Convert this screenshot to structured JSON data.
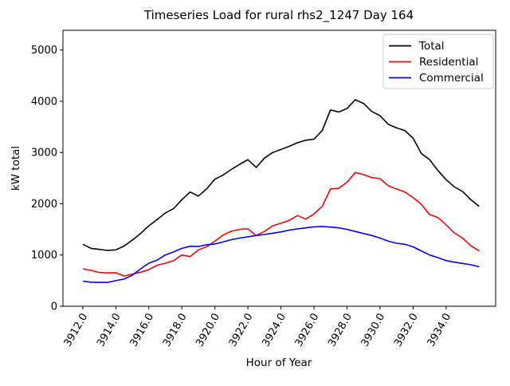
{
  "chart_data": {
    "type": "line",
    "title": "Timeseries Load for rural rhs2_1247  Day 164",
    "xlabel": "Hour of Year",
    "ylabel": "kW total",
    "grid": false,
    "legend_position": "upper-right",
    "xlim": [
      3910.8,
      3937.0
    ],
    "ylim": [
      0,
      5385
    ],
    "xticks": {
      "values": [
        3912,
        3914,
        3916,
        3918,
        3920,
        3922,
        3924,
        3926,
        3928,
        3930,
        3932,
        3934
      ],
      "labels": [
        "3912.0",
        "3914.0",
        "3916.0",
        "3918.0",
        "3920.0",
        "3922.0",
        "3924.0",
        "3926.0",
        "3928.0",
        "3930.0",
        "3932.0",
        "3934.0"
      ],
      "rotation_deg": 60
    },
    "yticks": {
      "values": [
        0,
        1000,
        2000,
        3000,
        4000,
        5000
      ],
      "labels": [
        "0",
        "1000",
        "2000",
        "3000",
        "4000",
        "5000"
      ]
    },
    "x": [
      3912.0,
      3912.5,
      3913.0,
      3913.5,
      3914.0,
      3914.5,
      3915.0,
      3915.5,
      3916.0,
      3916.5,
      3917.0,
      3917.5,
      3918.0,
      3918.5,
      3919.0,
      3919.5,
      3920.0,
      3920.5,
      3921.0,
      3921.5,
      3922.0,
      3922.5,
      3923.0,
      3923.5,
      3924.0,
      3924.5,
      3925.0,
      3925.5,
      3926.0,
      3926.5,
      3927.0,
      3927.5,
      3928.0,
      3928.5,
      3929.0,
      3929.5,
      3930.0,
      3930.5,
      3931.0,
      3931.5,
      3932.0,
      3932.5,
      3933.0,
      3933.5,
      3934.0,
      3934.5,
      3935.0,
      3935.5,
      3936.0
    ],
    "series": [
      {
        "name": "Total",
        "color": "#000000",
        "values": [
          1210,
          1130,
          1110,
          1090,
          1100,
          1175,
          1290,
          1420,
          1570,
          1690,
          1820,
          1905,
          2080,
          2230,
          2150,
          2290,
          2480,
          2560,
          2670,
          2770,
          2860,
          2710,
          2890,
          3000,
          3060,
          3120,
          3190,
          3240,
          3260,
          3430,
          3830,
          3790,
          3860,
          4030,
          3960,
          3800,
          3720,
          3550,
          3480,
          3430,
          3280,
          2980,
          2860,
          2650,
          2470,
          2330,
          2240,
          2080,
          1950
        ]
      },
      {
        "name": "Residential",
        "color": "#ff0000",
        "values": [
          730,
          700,
          660,
          650,
          655,
          590,
          625,
          665,
          715,
          800,
          840,
          890,
          1000,
          970,
          1100,
          1160,
          1270,
          1390,
          1465,
          1500,
          1510,
          1380,
          1460,
          1570,
          1620,
          1675,
          1770,
          1700,
          1800,
          1950,
          2290,
          2300,
          2420,
          2610,
          2570,
          2510,
          2490,
          2350,
          2290,
          2230,
          2120,
          1990,
          1790,
          1730,
          1590,
          1430,
          1330,
          1180,
          1080
        ]
      },
      {
        "name": "Commercial",
        "color": "#0000ff",
        "values": [
          490,
          470,
          465,
          465,
          500,
          530,
          605,
          730,
          840,
          900,
          1000,
          1060,
          1130,
          1170,
          1165,
          1200,
          1215,
          1255,
          1300,
          1330,
          1355,
          1380,
          1400,
          1425,
          1450,
          1485,
          1510,
          1530,
          1550,
          1555,
          1545,
          1530,
          1500,
          1460,
          1420,
          1380,
          1330,
          1270,
          1230,
          1210,
          1160,
          1080,
          1000,
          950,
          890,
          860,
          835,
          810,
          770
        ]
      }
    ]
  }
}
